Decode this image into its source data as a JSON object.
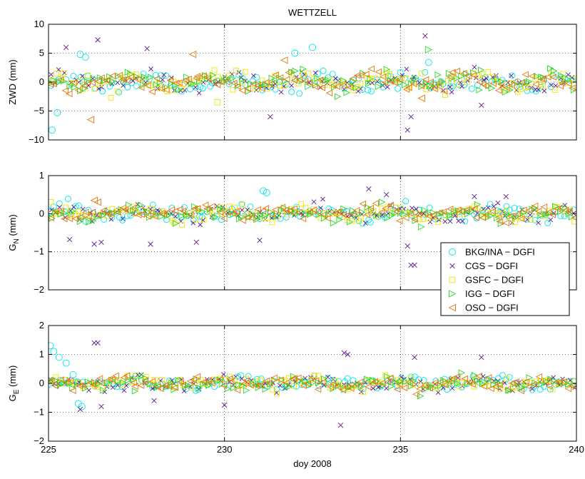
{
  "figure": {
    "title": "WETTZELL",
    "xlabel": "doy 2008"
  },
  "chart_data": [
    {
      "type": "scatter",
      "panel": "zwd",
      "ylabel": "ZWD (mm)",
      "xlim": [
        225,
        240
      ],
      "ylim": [
        -10,
        10
      ],
      "xticks": [
        225,
        230,
        235,
        240
      ],
      "yticks": [
        10,
        5,
        0,
        -5,
        -10
      ],
      "ytick_labels": [
        "10",
        "5",
        "0",
        "−5",
        "−10"
      ],
      "grid": true,
      "noise": 1.3,
      "outliers": [
        {
          "series": "BKG/INA - DGFI",
          "x": 225.1,
          "y": -8.3
        },
        {
          "series": "BKG/INA - DGFI",
          "x": 225.25,
          "y": -5.3
        },
        {
          "series": "BKG/INA - DGFI",
          "x": 225.9,
          "y": 4.8
        },
        {
          "series": "BKG/INA - DGFI",
          "x": 226.05,
          "y": 4.3
        },
        {
          "series": "BKG/INA - DGFI",
          "x": 232.5,
          "y": 6.0
        },
        {
          "series": "BKG/INA - DGFI",
          "x": 232.0,
          "y": 5.0
        },
        {
          "series": "BKG/INA - DGFI",
          "x": 235.8,
          "y": 3.4
        },
        {
          "series": "CGS - DGFI",
          "x": 225.5,
          "y": 6.0
        },
        {
          "series": "CGS - DGFI",
          "x": 226.4,
          "y": 7.3
        },
        {
          "series": "CGS - DGFI",
          "x": 227.8,
          "y": 5.8
        },
        {
          "series": "CGS - DGFI",
          "x": 235.7,
          "y": 8.0
        },
        {
          "series": "CGS - DGFI",
          "x": 235.2,
          "y": -8.3
        },
        {
          "series": "CGS - DGFI",
          "x": 235.3,
          "y": -6.0
        },
        {
          "series": "CGS - DGFI",
          "x": 231.3,
          "y": -6.0
        },
        {
          "series": "CGS - DGFI",
          "x": 237.3,
          "y": -4.0
        },
        {
          "series": "GSFC - DGFI",
          "x": 229.8,
          "y": -3.5
        },
        {
          "series": "IGG - DGFI",
          "x": 235.8,
          "y": 5.6
        },
        {
          "series": "OSO - DGFI",
          "x": 226.2,
          "y": -6.5
        },
        {
          "series": "OSO - DGFI",
          "x": 229.1,
          "y": 4.8
        },
        {
          "series": "OSO - DGFI",
          "x": 231.7,
          "y": 3.8
        },
        {
          "series": "OSO - DGFI",
          "x": 235.6,
          "y": -2.8
        }
      ]
    },
    {
      "type": "scatter",
      "panel": "gn",
      "ylabel_main": "G",
      "ylabel_sub": "N",
      "ylabel_unit": " (mm)",
      "xlim": [
        225,
        240
      ],
      "ylim": [
        -2,
        1
      ],
      "xticks": [
        225,
        230,
        235,
        240
      ],
      "yticks": [
        1,
        0,
        -1,
        -2
      ],
      "ytick_labels": [
        "1",
        "0",
        "−1",
        "−2"
      ],
      "grid": true,
      "noise": 0.17,
      "outliers": [
        {
          "series": "OSO - DGFI",
          "x": 226.3,
          "y": 0.35
        },
        {
          "series": "OSO - DGFI",
          "x": 226.4,
          "y": 0.3
        },
        {
          "series": "CGS - DGFI",
          "x": 225.6,
          "y": -0.68
        },
        {
          "series": "CGS - DGFI",
          "x": 226.3,
          "y": -0.8
        },
        {
          "series": "CGS - DGFI",
          "x": 226.5,
          "y": -0.75
        },
        {
          "series": "CGS - DGFI",
          "x": 227.9,
          "y": -0.8
        },
        {
          "series": "CGS - DGFI",
          "x": 229.2,
          "y": -0.75
        },
        {
          "series": "CGS - DGFI",
          "x": 231.0,
          "y": -0.7
        },
        {
          "series": "BKG/INA - DGFI",
          "x": 231.1,
          "y": 0.6
        },
        {
          "series": "BKG/INA - DGFI",
          "x": 231.2,
          "y": 0.55
        },
        {
          "series": "CGS - DGFI",
          "x": 234.1,
          "y": 0.65
        },
        {
          "series": "CGS - DGFI",
          "x": 234.6,
          "y": 0.5
        },
        {
          "series": "CGS - DGFI",
          "x": 235.2,
          "y": -0.85
        },
        {
          "series": "CGS - DGFI",
          "x": 235.3,
          "y": -1.35
        },
        {
          "series": "CGS - DGFI",
          "x": 235.4,
          "y": -1.35
        },
        {
          "series": "CGS - DGFI",
          "x": 237.1,
          "y": 0.45
        },
        {
          "series": "CGS - DGFI",
          "x": 238.0,
          "y": 0.45
        }
      ]
    },
    {
      "type": "scatter",
      "panel": "ge",
      "ylabel_main": "G",
      "ylabel_sub": "E",
      "ylabel_unit": " (mm)",
      "xlim": [
        225,
        240
      ],
      "ylim": [
        -2,
        2
      ],
      "xticks": [
        225,
        230,
        235,
        240
      ],
      "xtick_labels": [
        "225",
        "230",
        "235",
        "240"
      ],
      "yticks": [
        2,
        1,
        0,
        -1,
        -2
      ],
      "ytick_labels": [
        "2",
        "1",
        "0",
        "−1",
        "−2"
      ],
      "grid": true,
      "noise": 0.2,
      "outliers": [
        {
          "series": "BKG/INA - DGFI",
          "x": 225.05,
          "y": 1.3
        },
        {
          "series": "BKG/INA - DGFI",
          "x": 225.15,
          "y": 1.1
        },
        {
          "series": "BKG/INA - DGFI",
          "x": 225.3,
          "y": 0.9
        },
        {
          "series": "BKG/INA - DGFI",
          "x": 225.5,
          "y": 0.7
        },
        {
          "series": "BKG/INA - DGFI",
          "x": 225.7,
          "y": 0.3
        },
        {
          "series": "BKG/INA - DGFI",
          "x": 225.85,
          "y": -0.7
        },
        {
          "series": "BKG/INA - DGFI",
          "x": 225.95,
          "y": -0.8
        },
        {
          "series": "CGS - DGFI",
          "x": 225.9,
          "y": -0.9
        },
        {
          "series": "CGS - DGFI",
          "x": 226.3,
          "y": 1.4
        },
        {
          "series": "CGS - DGFI",
          "x": 226.4,
          "y": 1.4
        },
        {
          "series": "CGS - DGFI",
          "x": 226.5,
          "y": -0.8
        },
        {
          "series": "CGS - DGFI",
          "x": 233.3,
          "y": -1.45
        },
        {
          "series": "CGS - DGFI",
          "x": 233.4,
          "y": 1.05
        },
        {
          "series": "CGS - DGFI",
          "x": 233.5,
          "y": 1.0
        },
        {
          "series": "CGS - DGFI",
          "x": 237.3,
          "y": 0.9
        },
        {
          "series": "CGS - DGFI",
          "x": 235.4,
          "y": 0.9
        },
        {
          "series": "CGS - DGFI",
          "x": 230.0,
          "y": -0.75
        },
        {
          "series": "CGS - DGFI",
          "x": 228.0,
          "y": -0.6
        }
      ]
    }
  ],
  "legend": {
    "placement": "right, overlapping lower two panels",
    "entries": [
      {
        "label": "BKG/INA − DGFI",
        "marker": "circle",
        "color": "#00e5ee"
      },
      {
        "label": "CGS − DGFI",
        "marker": "x",
        "color": "#5b1a8b"
      },
      {
        "label": "GSFC − DGFI",
        "marker": "square",
        "color": "#f5e400"
      },
      {
        "label": "IGG − DGFI",
        "marker": "triangle-right",
        "color": "#22dd22"
      },
      {
        "label": "OSO − DGFI",
        "marker": "triangle-left",
        "color": "#e8740c"
      }
    ]
  }
}
